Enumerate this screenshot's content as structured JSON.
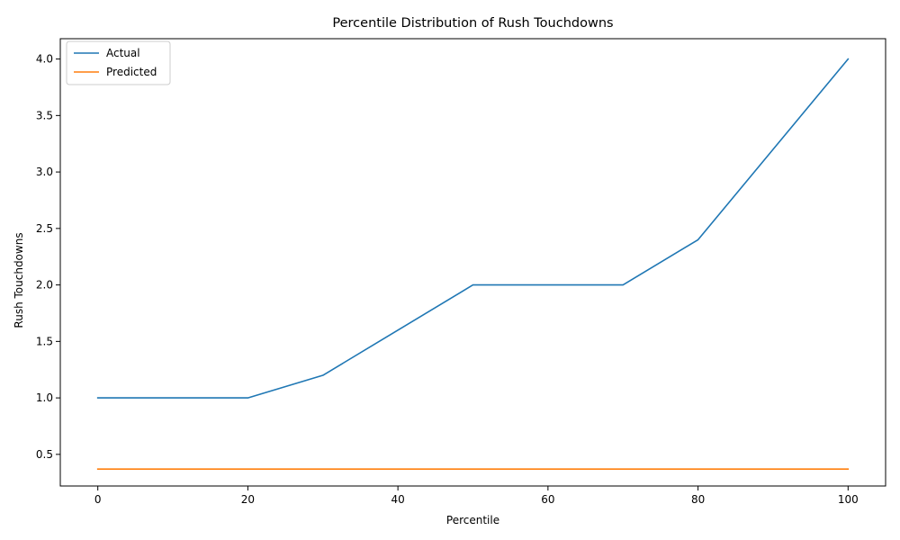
{
  "chart_data": {
    "type": "line",
    "title": "Percentile Distribution of Rush Touchdowns",
    "xlabel": "Percentile",
    "ylabel": "Rush Touchdowns",
    "x": [
      0,
      10,
      20,
      30,
      40,
      50,
      60,
      70,
      80,
      90,
      100
    ],
    "xlim": [
      -5,
      105
    ],
    "ylim": [
      0.22,
      4.18
    ],
    "xticks": [
      0,
      20,
      40,
      60,
      80,
      100
    ],
    "xtick_labels": [
      "0",
      "20",
      "40",
      "60",
      "80",
      "100"
    ],
    "yticks": [
      0.5,
      1.0,
      1.5,
      2.0,
      2.5,
      3.0,
      3.5,
      4.0
    ],
    "ytick_labels": [
      "0.5",
      "1.0",
      "1.5",
      "2.0",
      "2.5",
      "3.0",
      "3.5",
      "4.0"
    ],
    "grid": false,
    "legend": "upper-left",
    "series": [
      {
        "name": "Actual",
        "color": "#1f77b4",
        "values": [
          1.0,
          1.0,
          1.0,
          1.2,
          1.6,
          2.0,
          2.0,
          2.0,
          2.4,
          3.2,
          4.0
        ]
      },
      {
        "name": "Predicted",
        "color": "#ff7f0e",
        "values": [
          0.37,
          0.37,
          0.37,
          0.37,
          0.37,
          0.37,
          0.37,
          0.37,
          0.37,
          0.37,
          0.37
        ]
      }
    ]
  }
}
